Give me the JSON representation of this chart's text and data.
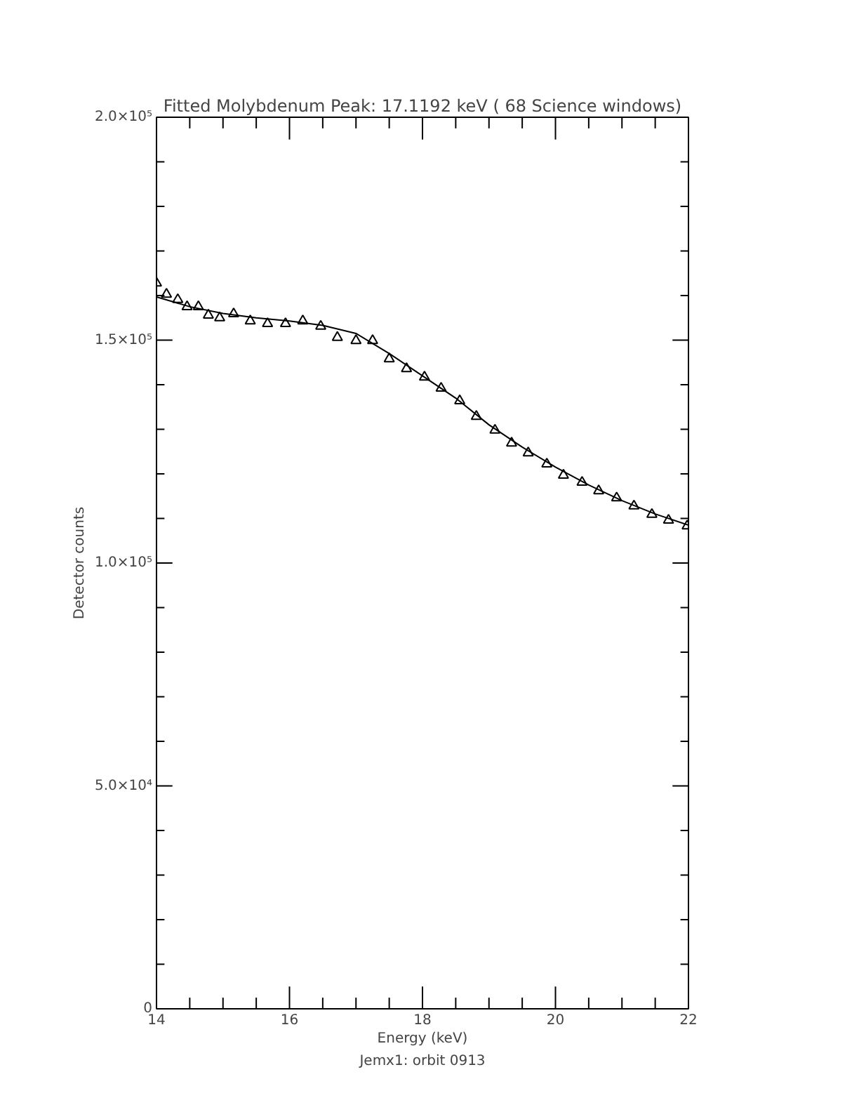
{
  "chart_data": {
    "type": "scatter",
    "title": "Fitted Molybdenum Peak: 17.1192 keV ( 68 Science windows)",
    "xlabel": "Energy (keV)",
    "ylabel": "Detector counts",
    "annotations": [
      "Jemx1: orbit 0913"
    ],
    "xlim": [
      14,
      22
    ],
    "ylim": [
      0,
      200000
    ],
    "xticks": [
      14,
      {
        "value": 14.5,
        "label": null
      },
      {
        "value": 15,
        "label": null
      },
      {
        "value": 15.5,
        "label": null
      },
      16,
      {
        "value": 16.5,
        "label": null
      },
      {
        "value": 17,
        "label": null
      },
      {
        "value": 17.5,
        "label": null
      },
      18,
      {
        "value": 18.5,
        "label": null
      },
      {
        "value": 19,
        "label": null
      },
      {
        "value": 19.5,
        "label": null
      },
      20,
      {
        "value": 20.5,
        "label": null
      },
      {
        "value": 21,
        "label": null
      },
      {
        "value": 21.5,
        "label": null
      },
      22
    ],
    "yticks": [
      0,
      {
        "value": 10000,
        "label": null
      },
      {
        "value": 20000,
        "label": null
      },
      {
        "value": 30000,
        "label": null
      },
      {
        "value": 40000,
        "label": null
      },
      {
        "value": 50000,
        "label": "5.0×10⁴"
      },
      {
        "value": 60000,
        "label": null
      },
      {
        "value": 70000,
        "label": null
      },
      {
        "value": 80000,
        "label": null
      },
      {
        "value": 90000,
        "label": null
      },
      {
        "value": 100000,
        "label": "1.0×10⁵"
      },
      {
        "value": 110000,
        "label": null
      },
      {
        "value": 120000,
        "label": null
      },
      {
        "value": 130000,
        "label": null
      },
      {
        "value": 140000,
        "label": null
      },
      {
        "value": 150000,
        "label": "1.5×10⁵"
      },
      {
        "value": 160000,
        "label": null
      },
      {
        "value": 170000,
        "label": null
      },
      {
        "value": 180000,
        "label": null
      },
      {
        "value": 190000,
        "label": null
      },
      {
        "value": 200000,
        "label": "2.0×10⁵"
      }
    ],
    "grid": false,
    "series": [
      {
        "marker": "triangle",
        "color": "#000000",
        "x": [
          14.0,
          14.15,
          14.32,
          14.46,
          14.63,
          14.78,
          14.95,
          15.16,
          15.41,
          15.67,
          15.94,
          16.2,
          16.47,
          16.72,
          17.0,
          17.25,
          17.5,
          17.76,
          18.03,
          18.28,
          18.56,
          18.81,
          19.09,
          19.34,
          19.59,
          19.87,
          20.12,
          20.4,
          20.65,
          20.92,
          21.18,
          21.45,
          21.7,
          21.98
        ],
        "values": [
          162800,
          160300,
          159100,
          157500,
          157500,
          155600,
          155000,
          155900,
          154300,
          153700,
          153700,
          154300,
          153100,
          150600,
          149900,
          149900,
          145800,
          143600,
          141700,
          139200,
          136400,
          132900,
          129800,
          126900,
          124700,
          122200,
          119700,
          118100,
          116200,
          114600,
          112800,
          110900,
          109600,
          108300
        ]
      },
      {
        "type": "line",
        "marker": "none",
        "line_style": "solid",
        "color": "#000000",
        "x": [
          14,
          14.5,
          15,
          15.5,
          16,
          16.5,
          17,
          17.5,
          18,
          18.5,
          19,
          19.5,
          20,
          20.5,
          21,
          21.5,
          22
        ],
        "values": [
          159700,
          157500,
          156000,
          155000,
          154300,
          153300,
          151500,
          147000,
          142000,
          137000,
          131000,
          126000,
          121500,
          117500,
          114000,
          111000,
          108500
        ]
      }
    ]
  }
}
